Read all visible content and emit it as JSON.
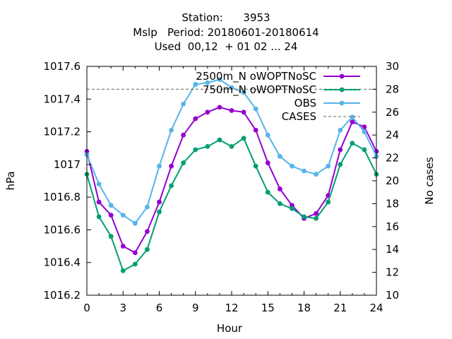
{
  "chart_data": {
    "type": "line",
    "title_lines": [
      "Station:      3953",
      "Mslp   Period: 20180601-20180614",
      "Used  00,12  + 01 02 ... 24"
    ],
    "xlabel": "Hour",
    "ylabel": "hPa",
    "y2label": "No cases",
    "xlim": [
      0,
      24
    ],
    "ylim": [
      1016.2,
      1017.6
    ],
    "y2lim": [
      10,
      30
    ],
    "x_ticks": [
      0,
      3,
      6,
      9,
      12,
      15,
      18,
      21,
      24
    ],
    "y_ticks": [
      1016.2,
      1016.4,
      1016.6,
      1016.8,
      1017,
      1017.2,
      1017.4,
      1017.6
    ],
    "y_tick_labels": [
      "1016.2",
      "1016.4",
      "1016.6",
      "1016.8",
      "1017",
      "1017.2",
      "1017.4",
      "1017.6"
    ],
    "y2_ticks": [
      10,
      12,
      14,
      16,
      18,
      20,
      22,
      24,
      26,
      28,
      30
    ],
    "x": [
      0,
      1,
      2,
      3,
      4,
      5,
      6,
      7,
      8,
      9,
      10,
      11,
      12,
      13,
      14,
      15,
      16,
      17,
      18,
      19,
      20,
      21,
      22,
      23,
      24
    ],
    "grid": false,
    "legend_position": "top-right",
    "series": [
      {
        "name": "2500m_N oWOPTNoSC",
        "color": "#9400d3",
        "marker": "circle",
        "values": [
          1017.08,
          1016.77,
          1016.69,
          1016.5,
          1016.46,
          1016.59,
          1016.77,
          1016.99,
          1017.18,
          1017.28,
          1017.32,
          1017.35,
          1017.33,
          1017.32,
          1017.21,
          1017.01,
          1016.85,
          1016.75,
          1016.67,
          1016.7,
          1016.81,
          1017.09,
          1017.26,
          1017.23,
          1017.08
        ]
      },
      {
        "name": "750m_N oWOPTNoSC",
        "color": "#009e73",
        "marker": "circle",
        "values": [
          1016.94,
          1016.68,
          1016.56,
          1016.35,
          1016.39,
          1016.48,
          1016.71,
          1016.87,
          1017.01,
          1017.09,
          1017.11,
          1017.15,
          1017.11,
          1017.16,
          1016.99,
          1016.83,
          1016.76,
          1016.73,
          1016.68,
          1016.67,
          1016.77,
          1017.0,
          1017.13,
          1017.09,
          1016.94
        ]
      },
      {
        "name": "OBS",
        "color": "#56b4e9",
        "marker": "circle",
        "values": [
          1017.06,
          1016.88,
          1016.75,
          1016.69,
          1016.64,
          1016.74,
          1016.99,
          1017.21,
          1017.37,
          1017.49,
          1017.5,
          1017.52,
          1017.47,
          1017.44,
          1017.34,
          1017.18,
          1017.05,
          1016.99,
          1016.96,
          1016.94,
          1016.99,
          1017.21,
          1017.29,
          1017.2,
          1017.05
        ]
      },
      {
        "name": "CASES",
        "color": "#808080",
        "axis": "y2",
        "style": "dashed",
        "values": [
          28,
          28,
          28,
          28,
          28,
          28,
          28,
          28,
          28,
          28,
          28,
          28,
          28,
          28,
          28,
          28,
          28,
          28,
          28,
          28,
          28,
          28,
          28,
          28,
          28
        ]
      }
    ]
  }
}
